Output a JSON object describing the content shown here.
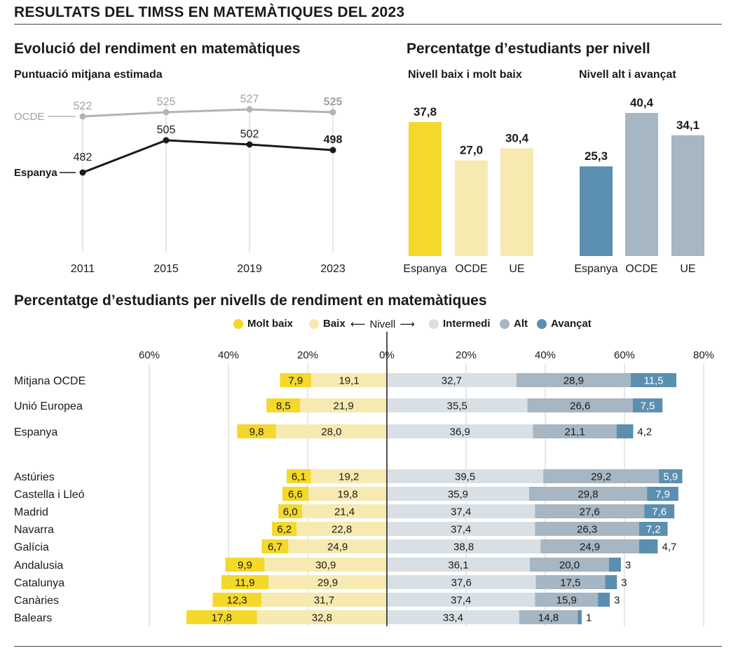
{
  "header": {
    "title": "RESULTATS DEL TIMSS EN MATEMÀTIQUES DEL 2023"
  },
  "colors": {
    "molt_baix": "#f4d82a",
    "baix": "#f7eab0",
    "intermedi": "#d8e0e6",
    "alt": "#a6b6c2",
    "avancat": "#5b8faf",
    "espanya_line": "#1a1a1a",
    "ocde_line": "#b3b3b3"
  },
  "chart_data": [
    {
      "type": "line",
      "title": "Evolució del rendiment en matemàtiques",
      "subtitle": "Puntuació mitjana estimada",
      "x": [
        "2011",
        "2015",
        "2019",
        "2023"
      ],
      "ylim": [
        440,
        540
      ],
      "series": [
        {
          "name": "OCDE",
          "values": [
            522,
            525,
            527,
            525
          ],
          "labels": [
            "522",
            "525",
            "527",
            "525"
          ]
        },
        {
          "name": "Espanya",
          "values": [
            482,
            505,
            502,
            498
          ],
          "labels": [
            "482",
            "505",
            "502",
            "498"
          ]
        }
      ]
    },
    {
      "type": "bar",
      "title": "Percentatge d’estudiants per nivell",
      "panels": [
        {
          "subtitle": "Nivell baix i molt baix",
          "categories": [
            "Espanya",
            "OCDE",
            "UE"
          ],
          "values": [
            37.8,
            27.0,
            30.4
          ],
          "labels": [
            "37,8",
            "27,0",
            "30,4"
          ]
        },
        {
          "subtitle": "Nivell alt i avançat",
          "categories": [
            "Espanya",
            "OCDE",
            "UE"
          ],
          "values": [
            25.3,
            40.4,
            34.1
          ],
          "labels": [
            "25,3",
            "40,4",
            "34,1"
          ]
        }
      ]
    },
    {
      "type": "bar",
      "title": "Percentatge d’estudiants per nivells de rendiment en matemàtiques",
      "legend": {
        "molt_baix": "Molt baix",
        "baix": "Baix",
        "nivell": "Nivell",
        "intermedi": "Intermedi",
        "alt": "Alt",
        "avancat": "Avançat"
      },
      "x_ticks": [
        "60%",
        "40%",
        "20%",
        "0%",
        "20%",
        "40%",
        "60%",
        "80%"
      ],
      "x_tick_values": [
        -60,
        -40,
        -20,
        0,
        20,
        40,
        60,
        80
      ],
      "rows": [
        {
          "name": "Mitjana OCDE",
          "molt_baix": 7.9,
          "baix": 19.1,
          "intermedi": 32.7,
          "alt": 28.9,
          "avancat": 11.5,
          "labels": [
            "7,9",
            "19,1",
            "32,7",
            "28,9",
            "11,5"
          ]
        },
        {
          "name": "Unió Europea",
          "molt_baix": 8.5,
          "baix": 21.9,
          "intermedi": 35.5,
          "alt": 26.6,
          "avancat": 7.5,
          "labels": [
            "8,5",
            "21,9",
            "35,5",
            "26,6",
            "7,5"
          ]
        },
        {
          "name": "Espanya",
          "molt_baix": 9.8,
          "baix": 28.0,
          "intermedi": 36.9,
          "alt": 21.1,
          "avancat": 4.2,
          "labels": [
            "9,8",
            "28,0",
            "36,9",
            "21,1",
            "4,2"
          ]
        },
        {
          "name": "Astúries",
          "molt_baix": 6.1,
          "baix": 19.2,
          "intermedi": 39.5,
          "alt": 29.2,
          "avancat": 5.9,
          "labels": [
            "6,1",
            "19,2",
            "39,5",
            "29,2",
            "5,9"
          ]
        },
        {
          "name": "Castella i Lleó",
          "molt_baix": 6.6,
          "baix": 19.8,
          "intermedi": 35.9,
          "alt": 29.8,
          "avancat": 7.9,
          "labels": [
            "6,6",
            "19,8",
            "35,9",
            "29,8",
            "7,9"
          ]
        },
        {
          "name": "Madrid",
          "molt_baix": 6.0,
          "baix": 21.4,
          "intermedi": 37.4,
          "alt": 27.6,
          "avancat": 7.6,
          "labels": [
            "6,0",
            "21,4",
            "37,4",
            "27,6",
            "7,6"
          ]
        },
        {
          "name": "Navarra",
          "molt_baix": 6.2,
          "baix": 22.8,
          "intermedi": 37.4,
          "alt": 26.3,
          "avancat": 7.2,
          "labels": [
            "6,2",
            "22,8",
            "37,4",
            "26,3",
            "7,2"
          ]
        },
        {
          "name": "Galícia",
          "molt_baix": 6.7,
          "baix": 24.9,
          "intermedi": 38.8,
          "alt": 24.9,
          "avancat": 4.7,
          "labels": [
            "6,7",
            "24,9",
            "38,8",
            "24,9",
            "4,7"
          ]
        },
        {
          "name": "Andalusia",
          "molt_baix": 9.9,
          "baix": 30.9,
          "intermedi": 36.1,
          "alt": 20.0,
          "avancat": 3,
          "labels": [
            "9,9",
            "30,9",
            "36,1",
            "20,0",
            "3"
          ]
        },
        {
          "name": "Catalunya",
          "molt_baix": 11.9,
          "baix": 29.9,
          "intermedi": 37.6,
          "alt": 17.5,
          "avancat": 3,
          "labels": [
            "11,9",
            "29,9",
            "37,6",
            "17,5",
            "3"
          ]
        },
        {
          "name": "Canàries",
          "molt_baix": 12.3,
          "baix": 31.7,
          "intermedi": 37.4,
          "alt": 15.9,
          "avancat": 3,
          "labels": [
            "12,3",
            "31,7",
            "37,4",
            "15,9",
            "3"
          ]
        },
        {
          "name": "Balears",
          "molt_baix": 17.8,
          "baix": 32.8,
          "intermedi": 33.4,
          "alt": 14.8,
          "avancat": 1,
          "labels": [
            "17,8",
            "32,8",
            "33,4",
            "14,8",
            "1"
          ]
        }
      ]
    }
  ]
}
